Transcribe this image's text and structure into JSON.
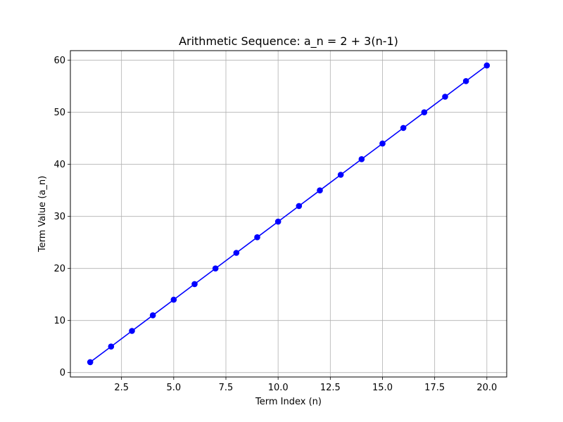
{
  "chart_data": {
    "type": "line",
    "title": "Arithmetic Sequence: a_n = 2 + 3(n-1)",
    "xlabel": "Term Index (n)",
    "ylabel": "Term Value (a_n)",
    "xlim": [
      0.05,
      20.95
    ],
    "ylim": [
      -0.85,
      61.85
    ],
    "xticks": [
      2.5,
      5.0,
      7.5,
      10.0,
      12.5,
      15.0,
      17.5,
      20.0
    ],
    "xtick_labels": [
      "2.5",
      "5.0",
      "7.5",
      "10.0",
      "12.5",
      "15.0",
      "17.5",
      "20.0"
    ],
    "yticks": [
      0,
      10,
      20,
      30,
      40,
      50,
      60
    ],
    "ytick_labels": [
      "0",
      "10",
      "20",
      "30",
      "40",
      "50",
      "60"
    ],
    "grid": true,
    "series": [
      {
        "color": "#0000ff",
        "marker": "circle",
        "x": [
          1,
          2,
          3,
          4,
          5,
          6,
          7,
          8,
          9,
          10,
          11,
          12,
          13,
          14,
          15,
          16,
          17,
          18,
          19,
          20
        ],
        "y": [
          2,
          5,
          8,
          11,
          14,
          17,
          20,
          23,
          26,
          29,
          32,
          35,
          38,
          41,
          44,
          47,
          50,
          53,
          56,
          59
        ]
      }
    ]
  }
}
